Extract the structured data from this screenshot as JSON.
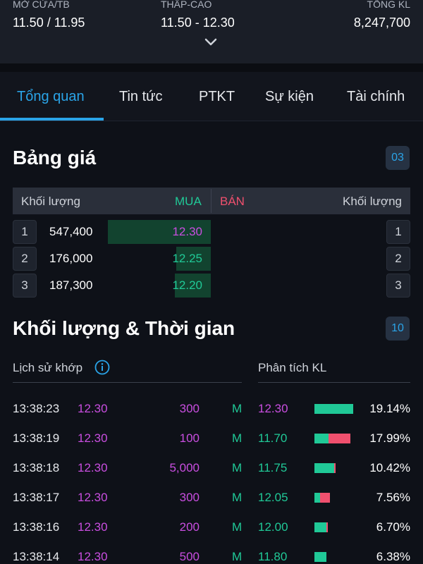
{
  "header": {
    "stats": [
      {
        "label": "MỞ CỬA/TB",
        "value": "11.50 / 11.95"
      },
      {
        "label": "THẤP-CAO",
        "value": "11.50 - 12.30"
      },
      {
        "label": "TỔNG KL",
        "value": "8,247,700"
      }
    ],
    "expand_icon": "chevron-down-icon"
  },
  "tabs": [
    {
      "label": "Tổng quan",
      "active": true
    },
    {
      "label": "Tin tức",
      "active": false
    },
    {
      "label": "PTKT",
      "active": false
    },
    {
      "label": "Sự kiện",
      "active": false
    },
    {
      "label": "Tài chính",
      "active": false
    }
  ],
  "price_board": {
    "title": "Bảng giá",
    "badge": "03",
    "headers": {
      "buy_volume": "Khối lượng",
      "buy": "MUA",
      "sell": "BÁN",
      "sell_volume": "Khối lượng"
    },
    "rows": [
      {
        "index": "1",
        "volume": "547,400",
        "price": "12.30",
        "price_color": "#c94ee0",
        "depth": 0.66,
        "sell_index": "1"
      },
      {
        "index": "2",
        "volume": "176,000",
        "price": "12.25",
        "price_color": "#20c997",
        "depth": 0.22,
        "sell_index": "2"
      },
      {
        "index": "3",
        "volume": "187,300",
        "price": "12.20",
        "price_color": "#20c997",
        "depth": 0.23,
        "sell_index": "3"
      }
    ]
  },
  "volume_time": {
    "title": "Khối lượng & Thời gian",
    "badge": "10",
    "history_label": "Lịch sử khớp",
    "info_icon": "info-icon",
    "analysis_label": "Phân tích KL",
    "rows": [
      {
        "time": "13:38:23",
        "price": "12.30",
        "volume": "300",
        "side": "M",
        "a_price": "12.30",
        "a_color": "#c94ee0",
        "buy_frac": 1.0,
        "sell_frac": 0.0,
        "pct": "19.14%"
      },
      {
        "time": "13:38:19",
        "price": "12.30",
        "volume": "100",
        "side": "M",
        "a_price": "11.70",
        "a_color": "#20c997",
        "buy_frac": 0.36,
        "sell_frac": 0.56,
        "pct": "17.99%"
      },
      {
        "time": "13:38:18",
        "price": "12.30",
        "volume": "5,000",
        "side": "M",
        "a_price": "11.75",
        "a_color": "#20c997",
        "buy_frac": 0.5,
        "sell_frac": 0.04,
        "pct": "10.42%"
      },
      {
        "time": "13:38:17",
        "price": "12.30",
        "volume": "300",
        "side": "M",
        "a_price": "12.05",
        "a_color": "#20c997",
        "buy_frac": 0.14,
        "sell_frac": 0.26,
        "pct": "7.56%"
      },
      {
        "time": "13:38:16",
        "price": "12.30",
        "volume": "200",
        "side": "M",
        "a_price": "12.00",
        "a_color": "#20c997",
        "buy_frac": 0.3,
        "sell_frac": 0.04,
        "pct": "6.70%"
      },
      {
        "time": "13:38:14",
        "price": "12.30",
        "volume": "500",
        "side": "M",
        "a_price": "11.80",
        "a_color": "#20c997",
        "buy_frac": 0.3,
        "sell_frac": 0.0,
        "pct": "6.38%"
      }
    ]
  },
  "colors": {
    "accent": "#2aa4e8",
    "up": "#20c997",
    "ceiling": "#c94ee0",
    "down": "#f0506e"
  }
}
